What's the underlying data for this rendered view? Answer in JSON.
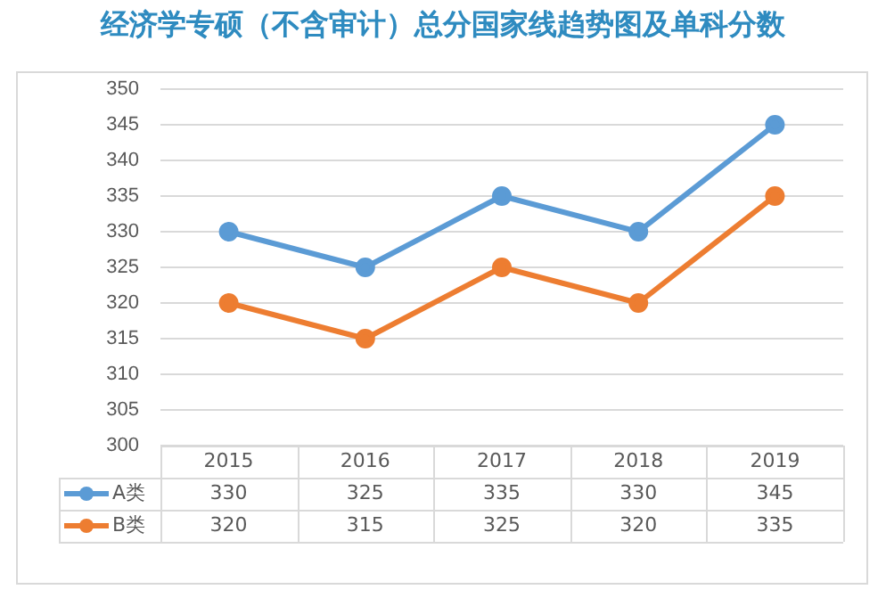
{
  "chart_data": {
    "type": "line",
    "title": "经济学专硕（不含审计）总分国家线趋势图及单科分数",
    "categories": [
      "2015",
      "2016",
      "2017",
      "2018",
      "2019"
    ],
    "series": [
      {
        "name": "A类",
        "color": "#5b9bd5",
        "values": [
          330,
          325,
          335,
          330,
          345
        ]
      },
      {
        "name": "B类",
        "color": "#ed7d31",
        "values": [
          320,
          315,
          325,
          320,
          335
        ]
      }
    ],
    "ylim": [
      300,
      350
    ],
    "yticks": [
      300,
      305,
      310,
      315,
      320,
      325,
      330,
      335,
      340,
      345,
      350
    ],
    "grid": "y",
    "legend": "bottom",
    "marker": "circle",
    "line_style": "solid",
    "data_labels": true
  }
}
